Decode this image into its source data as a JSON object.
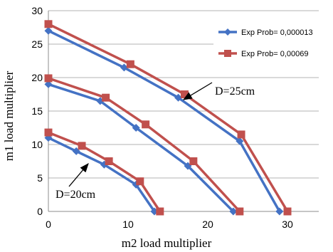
{
  "chart_data": {
    "type": "line",
    "title": "",
    "xlabel": "m2 load multiplier",
    "ylabel": "m1 load multiplier",
    "xlim": [
      0,
      30
    ],
    "ylim": [
      0,
      30
    ],
    "x_ticks": [
      0,
      10,
      20,
      30
    ],
    "y_ticks": [
      0,
      5,
      10,
      15,
      20,
      25,
      30
    ],
    "grid": "horizontal",
    "legend": "top-right",
    "series": [
      {
        "name": "Exp Prob= 0,000013",
        "color": "#4472c4",
        "marker": "diamond",
        "groups": [
          {
            "x": [
              0,
              3.5,
              7,
              11,
              13.3
            ],
            "y": [
              11,
              9,
              7,
              4,
              0
            ]
          },
          {
            "x": [
              0,
              6.5,
              11,
              17.5,
              23.2
            ],
            "y": [
              19,
              16.5,
              12.5,
              6.8,
              0
            ]
          },
          {
            "x": [
              0,
              9.5,
              16.3,
              24,
              29
            ],
            "y": [
              27,
              21.5,
              17,
              10.5,
              0
            ]
          }
        ]
      },
      {
        "name": "Exp Prob= 0,00069",
        "color": "#c0504d",
        "marker": "square",
        "groups": [
          {
            "x": [
              0,
              4.2,
              7.6,
              11.5,
              14
            ],
            "y": [
              11.8,
              9.8,
              7.5,
              4.5,
              0
            ]
          },
          {
            "x": [
              0,
              7.2,
              12.2,
              18.2,
              24
            ],
            "y": [
              19.9,
              17,
              13,
              7.5,
              0
            ]
          },
          {
            "x": [
              0,
              10.3,
              17.1,
              24.2,
              30
            ],
            "y": [
              28,
              22,
              17.5,
              11.5,
              0
            ]
          }
        ]
      }
    ],
    "annotations": [
      {
        "text": "D=25cm"
      },
      {
        "text": "D=20cm"
      }
    ]
  }
}
